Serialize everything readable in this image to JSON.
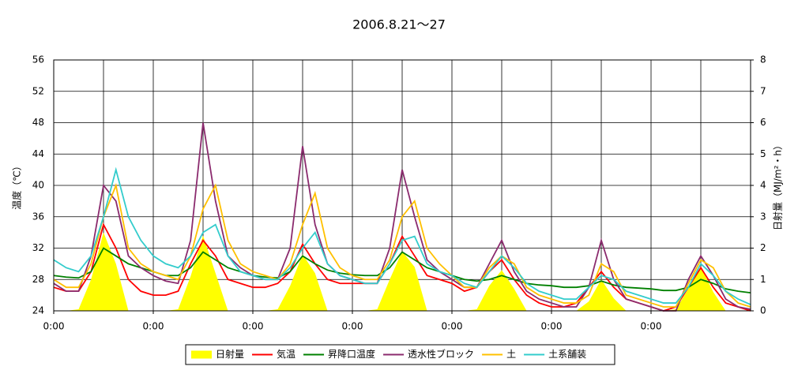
{
  "chart_data": {
    "type": "line",
    "title": "2006.8.21～27",
    "y_label": "温度（℃）",
    "y2_label": "日射量（MJ/m²・h）",
    "x": [
      0,
      3,
      6,
      9,
      12,
      15,
      18,
      21,
      24,
      27,
      30,
      33,
      36,
      39,
      42,
      45,
      48,
      51,
      54,
      57,
      60,
      63,
      66,
      69,
      72,
      75,
      78,
      81,
      84,
      87,
      90,
      93,
      96,
      99,
      102,
      105,
      108,
      111,
      114,
      117,
      120,
      123,
      126,
      129,
      132,
      135,
      138,
      141,
      144,
      147,
      150,
      153,
      156,
      159,
      162,
      165,
      168
    ],
    "xlim": [
      0,
      168
    ],
    "xticks": [
      {
        "value": 0,
        "label": "0:00"
      },
      {
        "value": 24,
        "label": "0:00"
      },
      {
        "value": 48,
        "label": "0:00"
      },
      {
        "value": 72,
        "label": "0:00"
      },
      {
        "value": 96,
        "label": "0:00"
      },
      {
        "value": 120,
        "label": "0:00"
      },
      {
        "value": 144,
        "label": "0:00"
      }
    ],
    "x_gridlines": [
      0,
      12,
      24,
      36,
      48,
      60,
      72,
      84,
      96,
      108,
      120,
      132,
      144,
      156,
      168
    ],
    "ylim": [
      24,
      56
    ],
    "yticks": [
      24,
      28,
      32,
      36,
      40,
      44,
      48,
      52,
      56
    ],
    "y2lim": [
      0,
      8
    ],
    "y2ticks": [
      0,
      1,
      2,
      3,
      4,
      5,
      6,
      7,
      8
    ],
    "grid": true,
    "legend": "bottom",
    "series": [
      {
        "name": "日射量",
        "color": "#ffff00",
        "axis": "y2",
        "style": "area",
        "values": [
          0,
          0,
          0.05,
          1,
          2.5,
          1.5,
          0,
          0,
          0,
          0,
          0.05,
          1.1,
          2.4,
          1.2,
          0,
          0,
          0,
          0,
          0.05,
          0.8,
          1.8,
          1.2,
          0,
          0,
          0,
          0,
          0.05,
          1,
          1.9,
          1.4,
          0,
          0,
          0,
          0,
          0.05,
          0.8,
          1.3,
          0.7,
          0,
          0,
          0,
          0,
          0,
          0.3,
          1.0,
          0.4,
          0,
          0,
          0,
          0,
          0.05,
          0.7,
          1.4,
          0.6,
          0,
          0,
          0
        ]
      },
      {
        "name": "気温",
        "color": "#ff0000",
        "values": [
          27,
          26.5,
          26.5,
          29,
          35,
          32,
          28,
          26.5,
          26,
          26,
          26.5,
          30,
          33,
          31,
          28,
          27.5,
          27,
          27,
          27.5,
          29,
          32.5,
          30,
          28,
          27.5,
          27.5,
          27.5,
          27.5,
          30,
          33.5,
          31,
          28.5,
          28,
          27.5,
          26.5,
          27,
          29,
          30.5,
          28,
          26,
          25,
          24.5,
          24.5,
          25,
          27,
          29,
          27,
          25.5,
          25,
          24.5,
          24,
          24.5,
          27,
          29.5,
          27,
          25,
          24.5,
          24
        ]
      },
      {
        "name": "昇降口温度",
        "color": "#008000",
        "values": [
          28.5,
          28.3,
          28.2,
          29,
          32,
          31,
          30,
          29.5,
          29,
          28.5,
          28.5,
          29.5,
          31.5,
          30.5,
          29.5,
          29,
          28.5,
          28.3,
          28.2,
          29,
          31,
          30,
          29.2,
          28.8,
          28.6,
          28.5,
          28.5,
          29.5,
          31.5,
          30.5,
          29.5,
          29,
          28.5,
          28,
          27.8,
          28,
          28.5,
          28,
          27.5,
          27.3,
          27.2,
          27,
          27,
          27.2,
          27.8,
          27.3,
          27,
          26.9,
          26.8,
          26.6,
          26.6,
          27,
          28,
          27.5,
          26.8,
          26.5,
          26.3
        ]
      },
      {
        "name": "透水性ブロック",
        "color": "#8b2b6e",
        "values": [
          27.5,
          26.5,
          26.5,
          31,
          40,
          38,
          31,
          29.5,
          28.5,
          27.8,
          27.5,
          33,
          48,
          38,
          31,
          29.5,
          28.5,
          28,
          28,
          32,
          45,
          35,
          30,
          28.5,
          28,
          27.5,
          27.5,
          32,
          42,
          36,
          30.5,
          29,
          28,
          27,
          27,
          30,
          33,
          29,
          26.5,
          25.5,
          25,
          24.5,
          24.5,
          27,
          33,
          28,
          25.5,
          25,
          24.5,
          24,
          24,
          28,
          31,
          28.5,
          25.5,
          24.5,
          24.2
        ]
      },
      {
        "name": "土",
        "color": "#ffc000",
        "values": [
          28,
          27,
          27,
          30,
          36,
          40,
          32,
          30,
          29,
          28.5,
          28,
          31,
          37,
          40,
          33,
          30,
          29,
          28.5,
          28,
          30,
          35,
          39,
          32,
          29.5,
          28.5,
          28,
          28,
          30.5,
          36,
          38,
          32,
          30,
          28.5,
          27,
          27,
          29.5,
          31,
          30,
          27,
          26,
          25.5,
          25,
          25,
          26,
          30,
          29,
          26,
          25.5,
          25,
          24.5,
          24.5,
          27.5,
          30.5,
          29.5,
          26.5,
          25,
          24.5
        ]
      },
      {
        "name": "土系舗装",
        "color": "#33cccc",
        "values": [
          30.5,
          29.5,
          29,
          31,
          36,
          42,
          36,
          33,
          31,
          30,
          29.5,
          31,
          34,
          35,
          31,
          29,
          28.5,
          28,
          28,
          29.5,
          32,
          34,
          30,
          28.5,
          28,
          27.5,
          27.5,
          30,
          33,
          33.5,
          30,
          29,
          28.5,
          27.5,
          27,
          29,
          31,
          29.5,
          27.5,
          26.5,
          26,
          25.5,
          25.5,
          27,
          28.5,
          28,
          26.5,
          26,
          25.5,
          25,
          25,
          27,
          30,
          28.5,
          26.5,
          25.5,
          24.8
        ]
      }
    ]
  }
}
